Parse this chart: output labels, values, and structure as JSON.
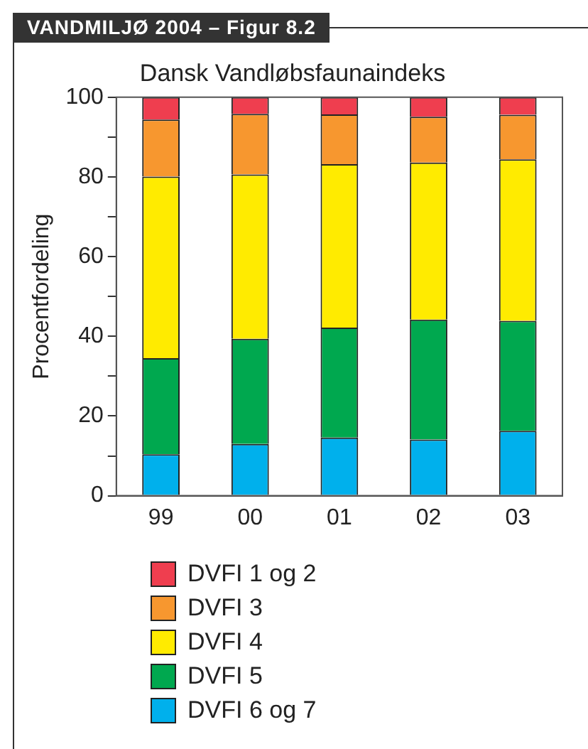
{
  "chart_data": {
    "type": "bar",
    "title": "VANDMILJØ 2004 – Figur 8.2",
    "subtitle": "Dansk Vandløbsfaunaindeks",
    "ylabel": "Procentfordeling",
    "categories": [
      "99",
      "00",
      "01",
      "02",
      "03"
    ],
    "stacked": true,
    "series": [
      {
        "name": "DVFI 6 og 7",
        "color": "#00b0ec",
        "values": [
          10.4,
          13.0,
          14.6,
          14.1,
          16.3
        ]
      },
      {
        "name": "DVFI 5",
        "color": "#00a84f",
        "values": [
          24.1,
          26.4,
          27.6,
          30.1,
          27.6
        ]
      },
      {
        "name": "DVFI 4",
        "color": "#ffeb00",
        "values": [
          45.6,
          41.2,
          41.0,
          39.4,
          40.5
        ]
      },
      {
        "name": "DVFI 3",
        "color": "#f7972f",
        "values": [
          14.3,
          15.2,
          12.5,
          11.5,
          11.2
        ]
      },
      {
        "name": "DVFI 1 og 2",
        "color": "#ef3e4f",
        "values": [
          5.6,
          4.2,
          4.3,
          4.9,
          4.4
        ]
      }
    ],
    "ylim": [
      0,
      100
    ],
    "yticks": [
      0,
      {
        "value": 10,
        "label": null
      },
      20,
      {
        "value": 30,
        "label": null
      },
      40,
      {
        "value": 50,
        "label": null
      },
      60,
      {
        "value": 70,
        "label": null
      },
      80,
      {
        "value": 90,
        "label": null
      },
      100
    ],
    "grid": false,
    "legend": "bottom"
  }
}
